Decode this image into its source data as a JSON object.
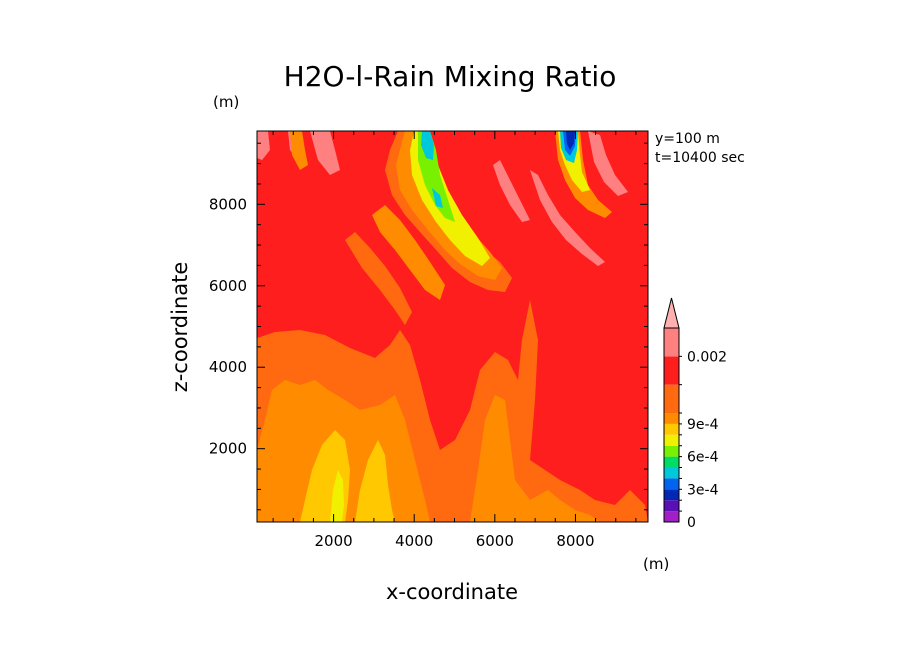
{
  "chart_data": {
    "type": "heatmap",
    "title": "H2O-l-Rain Mixing Ratio",
    "xlabel": "x-coordinate",
    "ylabel": "z-coordinate",
    "x_unit": "(m)",
    "y_unit": "(m)",
    "xlim": [
      100,
      9800
    ],
    "ylim": [
      200,
      9800
    ],
    "x_ticks": [
      2000,
      4000,
      6000,
      8000
    ],
    "y_ticks": [
      2000,
      4000,
      6000,
      8000
    ],
    "annotations": [
      "y=100 m",
      "t=10400 sec"
    ],
    "colorbar": {
      "levels": [
        0,
        0.0001,
        0.0002,
        0.0003,
        0.0004,
        0.0005,
        0.0006,
        0.0007,
        0.0008,
        0.0009,
        0.001,
        0.0015,
        0.002
      ],
      "labeled_levels": [
        {
          "value": 0,
          "label": "0"
        },
        {
          "value": 0.0003,
          "label": "3e-4"
        },
        {
          "value": 0.0006,
          "label": "6e-4"
        },
        {
          "value": 0.0009,
          "label": "9e-4"
        },
        {
          "value": 0.002,
          "label": "0.002"
        }
      ],
      "colors": [
        "#a020c8",
        "#5a10b4",
        "#0028b4",
        "#0064f0",
        "#00c8dc",
        "#00dc64",
        "#78f000",
        "#f0f000",
        "#ffc800",
        "#ff8c00",
        "#ff6a10",
        "#ff1e1e",
        "#ff8080",
        "#ffb0b0"
      ],
      "extend": "max"
    },
    "background_value": 0.0012,
    "features": [
      {
        "name": "lower orange zone",
        "value_range": [
          0.0009,
          0.001
        ],
        "region": "x 100-6600, z 200-4400"
      },
      {
        "name": "low-level yellow plumes",
        "value_range": [
          0.0008,
          0.0009
        ],
        "region": "x 1500-3700, z 200-2200"
      },
      {
        "name": "upper-left rain band",
        "value_range": [
          0.0006,
          0.001
        ],
        "region": "x 3300-6200, z 6300-9800"
      },
      {
        "name": "upper-right rain band",
        "value_range": [
          0.0001,
          0.001
        ],
        "region": "x 7500-8600, z 8300-9800"
      },
      {
        "name": "high-value streaks",
        "value_range": [
          0.0015,
          0.002
        ],
        "region": "x 800-9000, z 6000-9800"
      }
    ]
  }
}
